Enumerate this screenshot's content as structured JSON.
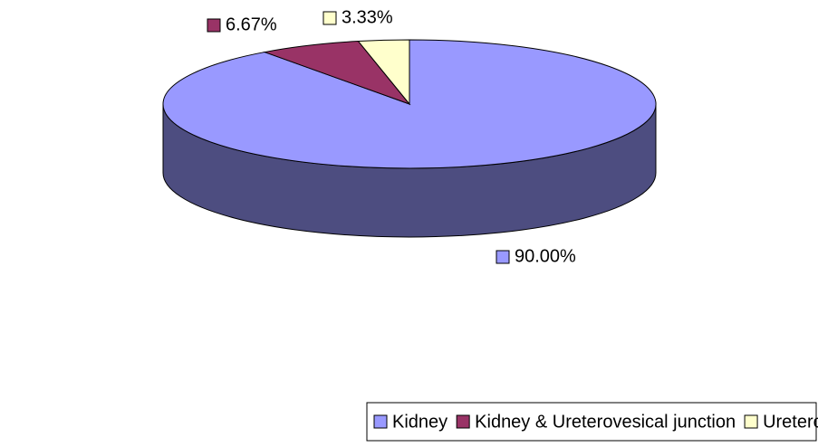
{
  "chart_data": {
    "type": "pie",
    "categories": [
      "Kidney",
      "Kidney & Ureterovesical junction",
      "Ureterovesical junction"
    ],
    "values": [
      90,
      6.67,
      3.33
    ],
    "value_labels": [
      "90.00%",
      "6.67%",
      "3.33%"
    ],
    "colors": [
      "#9999ff",
      "#993366",
      "#ffffcc"
    ],
    "legend": "bottom-right"
  }
}
